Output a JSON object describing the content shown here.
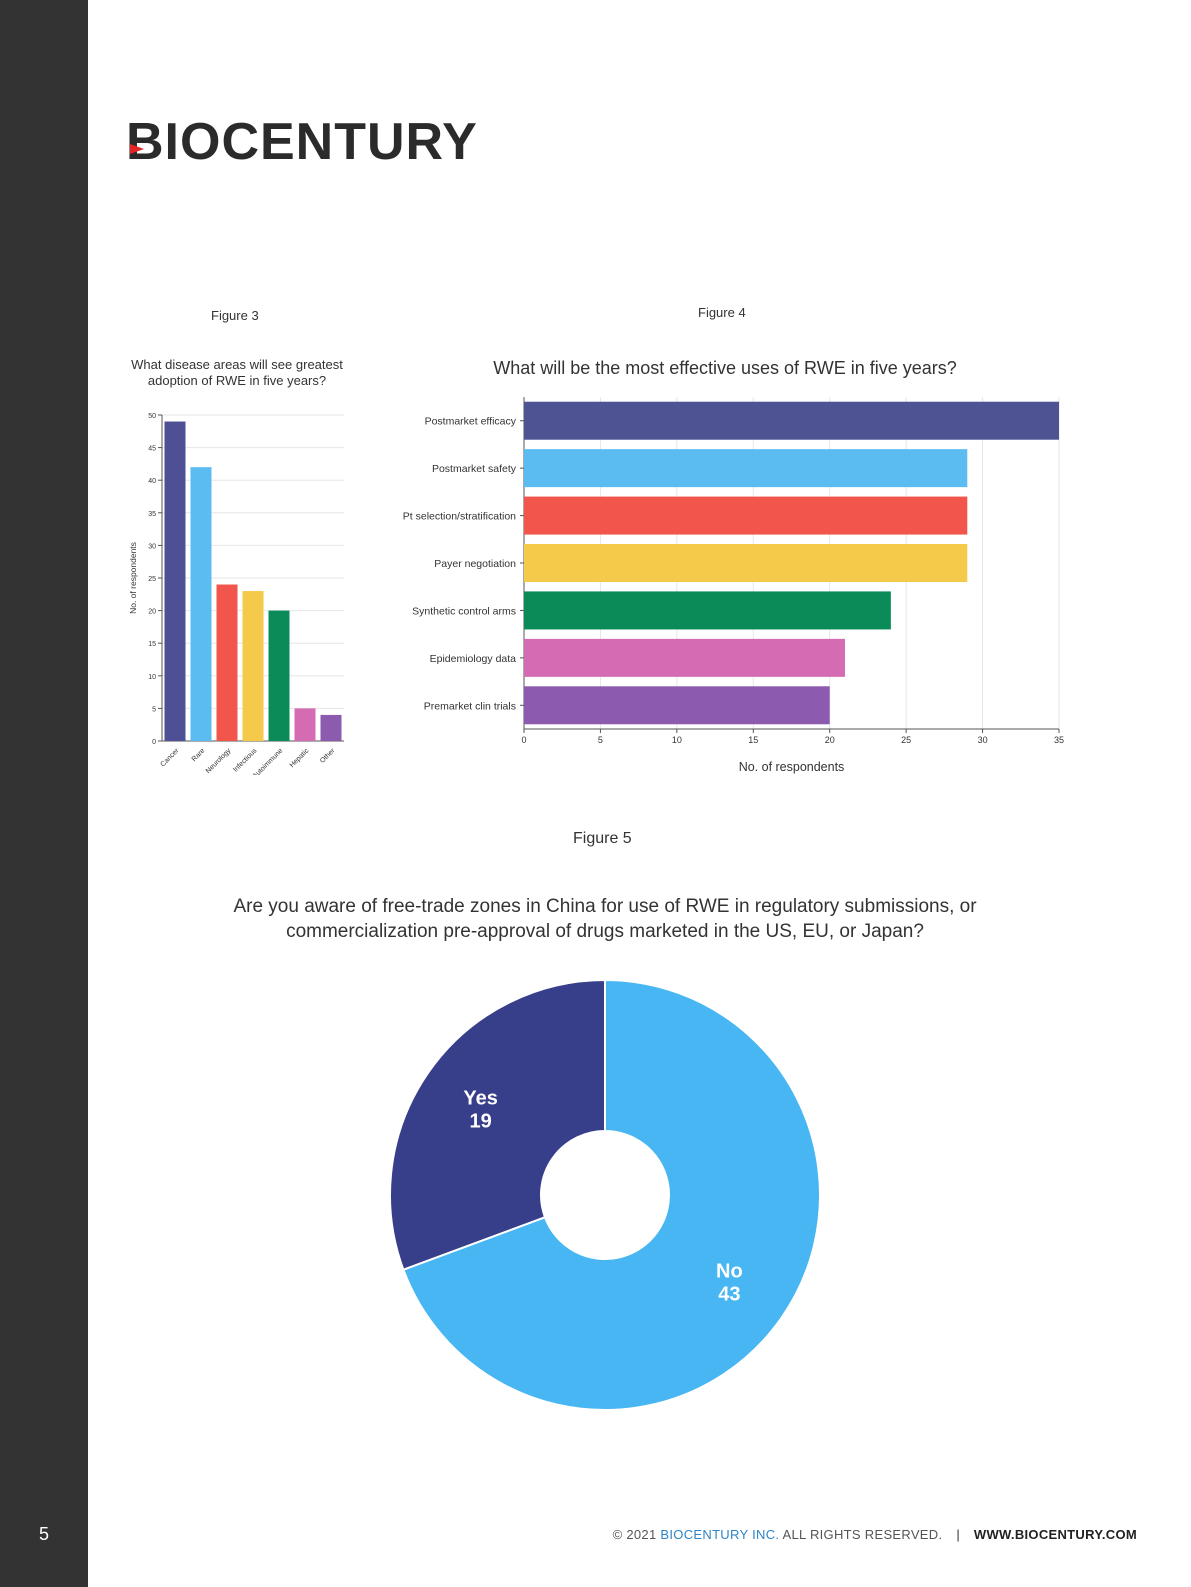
{
  "page": {
    "number": "5",
    "brand": "BIOCENTURY",
    "footer": {
      "copyright": "© 2021",
      "company": "BIOCENTURY INC.",
      "rights": "ALL RIGHTS RESERVED.",
      "separator": "|",
      "site": "WWW.BIOCENTURY.COM"
    }
  },
  "figures": {
    "fig3_label": "Figure 3",
    "fig4_label": "Figure 4",
    "fig5_label": "Figure 5"
  },
  "chart_data": [
    {
      "type": "bar",
      "orientation": "vertical",
      "title": "What disease areas will see greatest adoption of RWE in five years?",
      "ylabel": "No. of respondents",
      "xlabel": "",
      "categories": [
        "Cancer",
        "Rare",
        "Neurology",
        "Infectious",
        "Autoimmune",
        "Hepatic",
        "Other"
      ],
      "values": [
        49,
        42,
        24,
        23,
        20,
        5,
        4
      ],
      "colors": [
        "#4e4f94",
        "#5bbcf2",
        "#f2554c",
        "#f5c94a",
        "#0a8b57",
        "#d56bb2",
        "#8c5bb0"
      ],
      "ylim": [
        0,
        50
      ],
      "yticks": [
        0,
        5,
        10,
        15,
        20,
        25,
        30,
        35,
        40,
        45,
        50
      ],
      "grid": true
    },
    {
      "type": "bar",
      "orientation": "horizontal",
      "title": "What will be the most effective uses of RWE in five years?",
      "xlabel": "No. of respondents",
      "ylabel": "",
      "categories": [
        "Postmarket efficacy",
        "Postmarket safety",
        "Pt selection/stratification",
        "Payer negotiation",
        "Synthetic control arms",
        "Epidemiology data",
        "Premarket clin trials"
      ],
      "values": [
        35,
        29,
        29,
        29,
        24,
        21,
        20
      ],
      "colors": [
        "#4e5394",
        "#5bbcf2",
        "#f2554c",
        "#f5c94a",
        "#0a8b57",
        "#d56bb2",
        "#8c5bb0"
      ],
      "xlim": [
        0,
        35
      ],
      "xticks": [
        0,
        5,
        10,
        15,
        20,
        25,
        30,
        35
      ],
      "grid": true
    },
    {
      "type": "pie",
      "style": "donut",
      "title": "Are you aware of free-trade zones in China for use of RWE in regulatory submissions, or commercialization pre-approval of drugs marketed in the US, EU, or Japan?",
      "slices": [
        {
          "label": "No",
          "value": 43,
          "color": "#47b6f2"
        },
        {
          "label": "Yes",
          "value": 19,
          "color": "#373e8a"
        }
      ]
    }
  ]
}
